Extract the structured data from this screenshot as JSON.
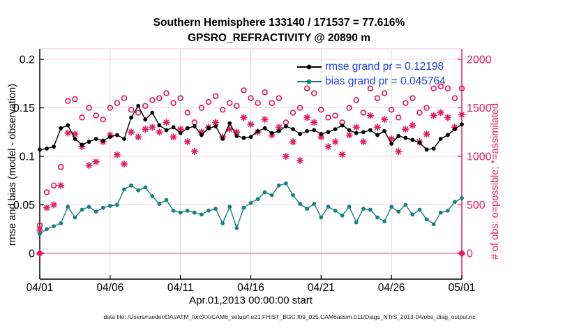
{
  "header": {
    "title_line1": "Southern Hemisphere 133140 / 171537 = 77.616%",
    "title_line2": "GPSRO_REFRACTIVITY @ 20890 m"
  },
  "caption": "data file: /Users/raeder/DAI/ATM_forcXX/CAM6_setup/f.e21.FHIST_BGC.f09_025.CAM6assim.011/Diags_NTrS_2013-04/obs_diag_output.nc",
  "colors": {
    "obs_pink": "#e11d5e",
    "bias_teal": "#15837c",
    "rmse_black": "#000000",
    "legend_blue": "#2040df",
    "grid_pink": "#f6d3e0",
    "grid_gray": "#dcdcdc",
    "zero_line": "#ddadc0"
  },
  "chart_data": {
    "type": "line",
    "title": "Southern Hemisphere 133140 / 171537 = 77.616% / GPSRO_REFRACTIVITY @ 20890 m",
    "x_axis": {
      "label": "Apr.01,2013 00:00:00 start",
      "tick_labels": [
        "04/01",
        "04/06",
        "04/11",
        "04/16",
        "04/21",
        "04/26",
        "05/01"
      ],
      "tick_days": [
        0,
        5,
        10,
        15,
        20,
        25,
        30
      ],
      "range_days": [
        0,
        30
      ]
    },
    "left_axis": {
      "label": "rmse and bias (model - observation)",
      "tick_labels": [
        "0",
        "0.05",
        "0.1",
        "0.15",
        "0.2"
      ],
      "tick_values": [
        0,
        0.05,
        0.1,
        0.15,
        0.2
      ],
      "range": [
        -0.0266,
        0.2108
      ]
    },
    "right_axis": {
      "label": "# of obs: o=possible; *=assimilated",
      "tick_labels": [
        "0",
        "500",
        "1000",
        "1500",
        "2000"
      ],
      "tick_values": [
        0,
        500,
        1000,
        1500,
        2000
      ],
      "range": [
        -266,
        2108
      ]
    },
    "zero_line": true,
    "legend_position": "top-right-inside",
    "x_days": [
      0,
      0.5,
      1,
      1.5,
      2,
      2.5,
      3,
      3.5,
      4,
      4.5,
      5,
      5.5,
      6,
      6.5,
      7,
      7.5,
      8,
      8.5,
      9,
      9.5,
      10,
      10.5,
      11,
      11.5,
      12,
      12.5,
      13,
      13.5,
      14,
      14.5,
      15,
      15.5,
      16,
      16.5,
      17,
      17.5,
      18,
      18.5,
      19,
      19.5,
      20,
      20.5,
      21,
      21.5,
      22,
      22.5,
      23,
      23.5,
      24,
      24.5,
      25,
      25.5,
      26,
      26.5,
      27,
      27.5,
      28,
      28.5,
      29,
      29.5,
      30
    ],
    "series": [
      {
        "name": "rmse",
        "legend": "rmse grand pr = 0.12198",
        "grand_mean": 0.12198,
        "style": "line-dot",
        "axis": "left",
        "values": [
          0.107,
          0.108,
          0.11,
          0.129,
          0.132,
          0.118,
          0.112,
          0.115,
          0.118,
          0.116,
          0.12,
          0.122,
          0.118,
          0.14,
          0.152,
          0.138,
          0.145,
          0.132,
          0.127,
          0.13,
          0.124,
          0.129,
          0.131,
          0.122,
          0.129,
          0.131,
          0.118,
          0.134,
          0.121,
          0.119,
          0.12,
          0.126,
          0.129,
          0.124,
          0.126,
          0.131,
          0.128,
          0.123,
          0.126,
          0.127,
          0.123,
          0.125,
          0.128,
          0.132,
          0.127,
          0.124,
          0.125,
          0.127,
          0.122,
          0.126,
          0.113,
          0.121,
          0.119,
          0.117,
          0.114,
          0.107,
          0.108,
          0.118,
          0.122,
          0.128,
          0.133
        ]
      },
      {
        "name": "bias",
        "legend": "bias grand pr = 0.045764",
        "grand_mean": 0.045764,
        "style": "line-dot",
        "axis": "left",
        "values": [
          0.02,
          0.025,
          0.028,
          0.031,
          0.048,
          0.037,
          0.045,
          0.048,
          0.043,
          0.047,
          0.049,
          0.05,
          0.066,
          0.07,
          0.065,
          0.068,
          0.059,
          0.051,
          0.055,
          0.044,
          0.042,
          0.044,
          0.042,
          0.04,
          0.044,
          0.046,
          0.031,
          0.048,
          0.026,
          0.047,
          0.052,
          0.056,
          0.063,
          0.06,
          0.07,
          0.072,
          0.06,
          0.051,
          0.046,
          0.051,
          0.037,
          0.048,
          0.044,
          0.039,
          0.048,
          0.032,
          0.046,
          0.045,
          0.037,
          0.033,
          0.048,
          0.043,
          0.05,
          0.04,
          0.045,
          0.035,
          0.03,
          0.042,
          0.044,
          0.053,
          0.057
        ]
      },
      {
        "name": "possible-obs",
        "legend": "o=possible",
        "style": "open-circle",
        "axis": "right",
        "values": [
          290,
          630,
          700,
          890,
          1570,
          1590,
          1400,
          1500,
          1420,
          1380,
          1500,
          1550,
          1600,
          1480,
          1450,
          1520,
          1580,
          1600,
          1650,
          1550,
          1600,
          1450,
          1350,
          1500,
          1560,
          1620,
          1480,
          1550,
          1520,
          1680,
          1600,
          1550,
          1660,
          1550,
          1600,
          1350,
          1450,
          1500,
          1700,
          1650,
          1480,
          1400,
          1420,
          1350,
          1500,
          1580,
          1450,
          1700,
          1600,
          1650,
          1480,
          1400,
          1550,
          1600,
          1450,
          1500,
          1700,
          1720,
          1700,
          1600,
          1700
        ]
      },
      {
        "name": "assimilated-obs",
        "legend": "*=assimilated",
        "style": "asterisk",
        "axis": "right",
        "values": [
          240,
          470,
          500,
          700,
          1240,
          1230,
          1100,
          907,
          944,
          1150,
          1220,
          1016,
          921,
          1250,
          1200,
          1280,
          1300,
          1250,
          1350,
          1200,
          1280,
          1150,
          1050,
          1250,
          1300,
          1350,
          1200,
          1280,
          1250,
          1400,
          1330,
          1250,
          1380,
          1220,
          1300,
          1000,
          1150,
          957,
          1400,
          1350,
          1200,
          1100,
          1150,
          1020,
          1220,
          1300,
          1150,
          1420,
          1300,
          1380,
          1180,
          1050,
          1280,
          1320,
          1150,
          1230,
          1420,
          1450,
          1400,
          1300,
          1430
        ]
      }
    ]
  }
}
